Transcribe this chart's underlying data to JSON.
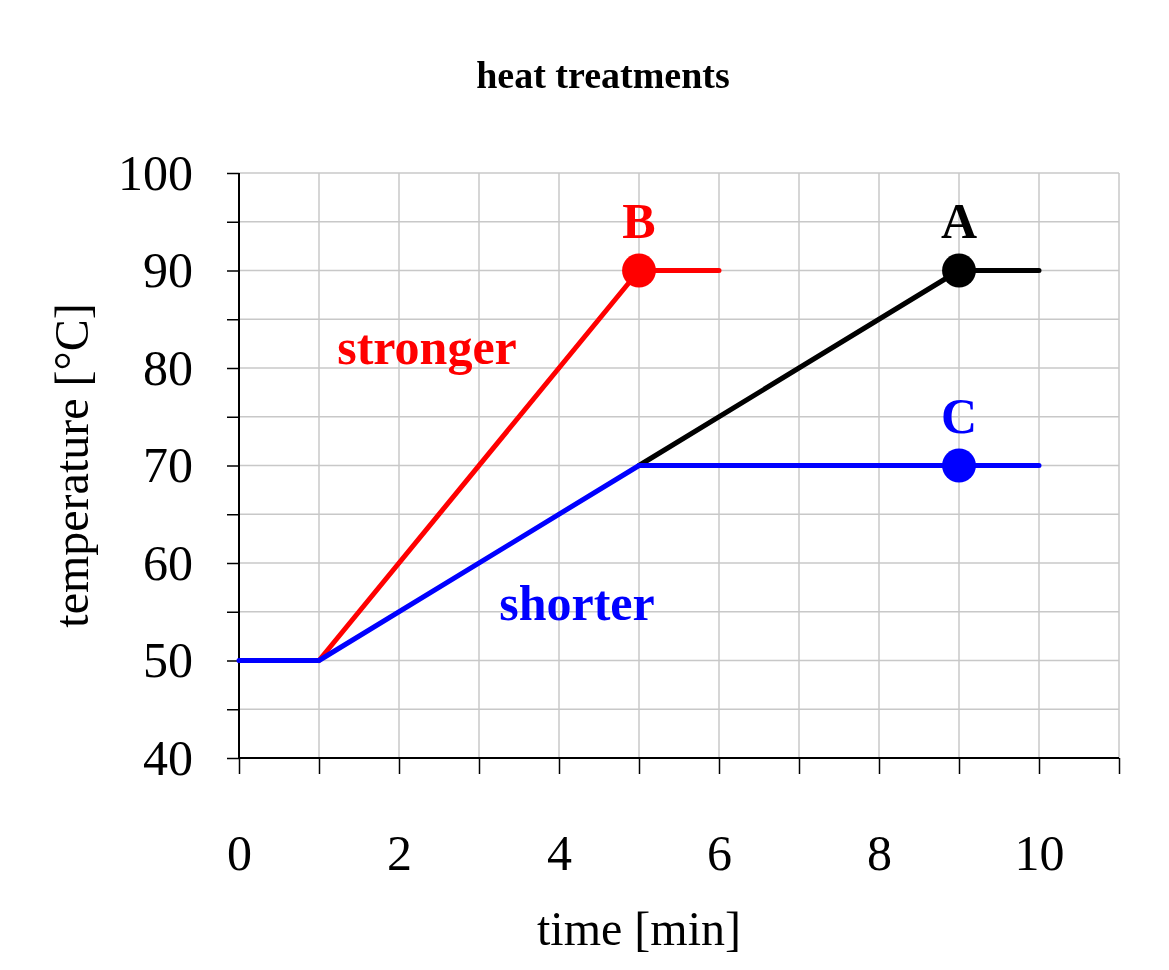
{
  "chart_data": {
    "type": "line",
    "title": "heat treatments",
    "xlabel": "time [min]",
    "ylabel": "temperature [°C]",
    "xlim": [
      0,
      11
    ],
    "ylim": [
      40,
      100
    ],
    "xticks": [
      0,
      {
        "value": 1,
        "label": null
      },
      2,
      {
        "value": 3,
        "label": null
      },
      4,
      {
        "value": 5,
        "label": null
      },
      6,
      {
        "value": 7,
        "label": null
      },
      8,
      {
        "value": 9,
        "label": null
      },
      10,
      {
        "value": 11,
        "label": null
      }
    ],
    "yticks": [
      40,
      {
        "value": 45,
        "label": null
      },
      50,
      {
        "value": 55,
        "label": null
      },
      60,
      {
        "value": 65,
        "label": null
      },
      70,
      {
        "value": 75,
        "label": null
      },
      80,
      {
        "value": 85,
        "label": null
      },
      90,
      {
        "value": 95,
        "label": null
      },
      100
    ],
    "grid": true,
    "line_style": "solid",
    "marker": "none",
    "series": [
      {
        "color": "#ff0000",
        "x": [
          1,
          5,
          6
        ],
        "values": [
          50,
          90,
          90
        ]
      },
      {
        "color": "#000000",
        "x": [
          5,
          9,
          10
        ],
        "values": [
          70,
          90,
          90
        ]
      },
      {
        "color": "#0000ff",
        "x": [
          0,
          1,
          5,
          10
        ],
        "values": [
          50,
          50,
          70,
          70
        ]
      },
      {
        "type": "scatter",
        "marker": "circle",
        "name": "B",
        "color": "#ff0000",
        "x": [
          5
        ],
        "values": [
          90
        ]
      },
      {
        "type": "scatter",
        "marker": "circle",
        "name": "A",
        "color": "#000000",
        "x": [
          9
        ],
        "values": [
          90
        ]
      },
      {
        "type": "scatter",
        "marker": "circle",
        "name": "C",
        "color": "#0000ff",
        "x": [
          9
        ],
        "values": [
          70
        ]
      }
    ],
    "annotations": [
      "stronger",
      "shorter"
    ]
  }
}
